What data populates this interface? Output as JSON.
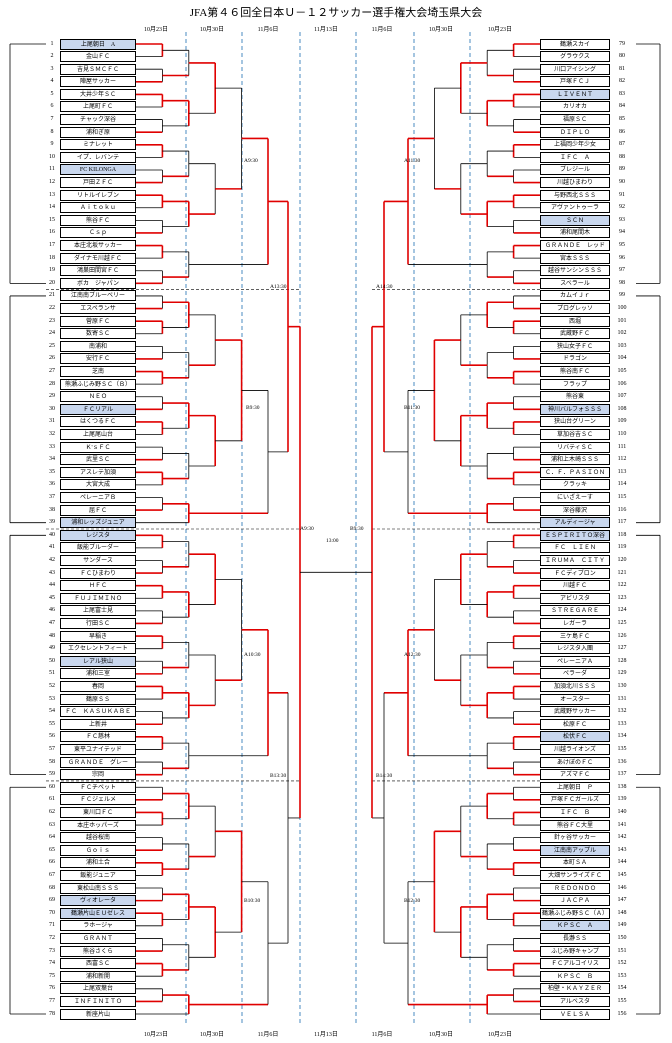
{
  "title": "JFA第４６回全日本Ｕ－１２サッカー選手権大会埼玉県大会",
  "dates_left": [
    "10月23日",
    "10月30日",
    "11月6日",
    "11月13日"
  ],
  "dates_right": [
    "11月6日",
    "10月30日",
    "10月23日"
  ],
  "colors": {
    "winner_line": "#e00000",
    "normal_line": "#000000",
    "date_divider": "#1f6fb2",
    "highlight": "#c9d7ee"
  },
  "left_teams": [
    {
      "num": "1",
      "name": "上尾朝日　A",
      "hl": true
    },
    {
      "num": "2",
      "name": "金山ＦＣ"
    },
    {
      "num": "3",
      "name": "吉見ＳＭＣＦＣ"
    },
    {
      "num": "4",
      "name": "陣屋サッカー"
    },
    {
      "num": "5",
      "name": "大井少年ＳＣ"
    },
    {
      "num": "6",
      "name": "上尾町ＦＣ"
    },
    {
      "num": "7",
      "name": "チャック深谷"
    },
    {
      "num": "8",
      "name": "浦和ぎ原"
    },
    {
      "num": "9",
      "name": "ミナレット"
    },
    {
      "num": "10",
      "name": "イプ．レバンテ"
    },
    {
      "num": "11",
      "name": "FC KILONGA",
      "hl": true
    },
    {
      "num": "12",
      "name": "戸田ＺＦＣ"
    },
    {
      "num": "13",
      "name": "リトルイレブン"
    },
    {
      "num": "14",
      "name": "Ａｉｔｏｋｕ"
    },
    {
      "num": "15",
      "name": "熊谷ＦＣ"
    },
    {
      "num": "16",
      "name": "Ｃｓｐ"
    },
    {
      "num": "17",
      "name": "本庄北坂サッカー"
    },
    {
      "num": "18",
      "name": "ダイナモ川越ＦＣ"
    },
    {
      "num": "19",
      "name": "鴻巣田間宮ＦＣ"
    },
    {
      "num": "20",
      "name": "ボカ　ジャパン"
    },
    {
      "num": "21",
      "name": "江南南ブルーベリー"
    },
    {
      "num": "22",
      "name": "エスペランサ"
    },
    {
      "num": "23",
      "name": "菅原ＦＣ"
    },
    {
      "num": "24",
      "name": "数寄ＳＣ"
    },
    {
      "num": "25",
      "name": "南浦和"
    },
    {
      "num": "26",
      "name": "安行ＦＣ"
    },
    {
      "num": "27",
      "name": "芝南"
    },
    {
      "num": "28",
      "name": "熊瀬ふじみ野ＳＣ（Ｂ）"
    },
    {
      "num": "29",
      "name": "ＮＥＯ"
    },
    {
      "num": "30",
      "name": "ＦＣリアル",
      "hl": true
    },
    {
      "num": "31",
      "name": "はくつるＦＣ"
    },
    {
      "num": "32",
      "name": "上尾尾山台"
    },
    {
      "num": "33",
      "name": "Ｋ'ｓＦＣ"
    },
    {
      "num": "34",
      "name": "武里ＳＣ"
    },
    {
      "num": "35",
      "name": "アスレテ加須"
    },
    {
      "num": "36",
      "name": "大宮大成"
    },
    {
      "num": "37",
      "name": "ペレーニアＢ"
    },
    {
      "num": "38",
      "name": "屈ＦＣ"
    },
    {
      "num": "39",
      "name": "浦和レッズジュニア",
      "hl": true
    },
    {
      "num": "40",
      "name": "レジスタ",
      "hl": true
    },
    {
      "num": "41",
      "name": "飯能ブルーダー"
    },
    {
      "num": "42",
      "name": "サンダース"
    },
    {
      "num": "43",
      "name": "ＦＣひまわり"
    },
    {
      "num": "44",
      "name": "ＨＦＣ"
    },
    {
      "num": "45",
      "name": "ＦＵＪＩＭＩＮＯ"
    },
    {
      "num": "46",
      "name": "上尾富士見"
    },
    {
      "num": "47",
      "name": "行田ＳＣ"
    },
    {
      "num": "48",
      "name": "早稲き"
    },
    {
      "num": "49",
      "name": "エクセレントフィート"
    },
    {
      "num": "50",
      "name": "レアル狭山",
      "hl": true
    },
    {
      "num": "51",
      "name": "浦和三室"
    },
    {
      "num": "52",
      "name": "春岡"
    },
    {
      "num": "53",
      "name": "鶴原ＳＳ"
    },
    {
      "num": "54",
      "name": "ＦＣ　ＫＡＳＵＫＡＢＥ"
    },
    {
      "num": "55",
      "name": "上新井"
    },
    {
      "num": "56",
      "name": "ＦＣ慈林"
    },
    {
      "num": "57",
      "name": "東平ユナイテッド"
    },
    {
      "num": "58",
      "name": "ＧＲＡＮＤＥ　グレー"
    },
    {
      "num": "59",
      "name": "宗岡"
    },
    {
      "num": "60",
      "name": "ＦＣチベット"
    },
    {
      "num": "61",
      "name": "ＦＣジェルメ"
    },
    {
      "num": "62",
      "name": "東川口ＦＣ"
    },
    {
      "num": "63",
      "name": "本庄ホッパーズ"
    },
    {
      "num": "64",
      "name": "越谷桜南"
    },
    {
      "num": "65",
      "name": "Ｇｏｉｓ"
    },
    {
      "num": "66",
      "name": "浦和土合"
    },
    {
      "num": "67",
      "name": "飯能ジュニア"
    },
    {
      "num": "68",
      "name": "東松山南ＳＳＳ"
    },
    {
      "num": "69",
      "name": "ヴィオレータ",
      "hl": true
    },
    {
      "num": "70",
      "name": "鶴瀬片山ＥＵゼレス",
      "hl": true
    },
    {
      "num": "71",
      "name": "ラホージャ"
    },
    {
      "num": "72",
      "name": "ＧＲＡＮＴ"
    },
    {
      "num": "73",
      "name": "熊谷さくら"
    },
    {
      "num": "74",
      "name": "西富ＳＣ"
    },
    {
      "num": "75",
      "name": "浦和新開"
    },
    {
      "num": "76",
      "name": "上尾双葉台"
    },
    {
      "num": "77",
      "name": "ＩＮＦＩＮＩＴＯ"
    },
    {
      "num": "78",
      "name": "新座片山"
    }
  ],
  "right_teams": [
    {
      "num": "79",
      "name": "鶴瀬スカイ"
    },
    {
      "num": "80",
      "name": "グラウクス"
    },
    {
      "num": "81",
      "name": "川口アイシング"
    },
    {
      "num": "82",
      "name": "戸塚ＦＣＪ"
    },
    {
      "num": "83",
      "name": "ＬＩＶＥＮＴ",
      "hl": true
    },
    {
      "num": "84",
      "name": "カリオカ"
    },
    {
      "num": "85",
      "name": "福原ＳＣ"
    },
    {
      "num": "86",
      "name": "ＤＩＰＬＯ"
    },
    {
      "num": "87",
      "name": "上福岡少年少女"
    },
    {
      "num": "88",
      "name": "ＩＦＣ　Ａ"
    },
    {
      "num": "89",
      "name": "ブレジール"
    },
    {
      "num": "90",
      "name": "川越ひまわり"
    },
    {
      "num": "91",
      "name": "与野西北ＳＳＳ"
    },
    {
      "num": "92",
      "name": "アヴァントゥーラ"
    },
    {
      "num": "93",
      "name": "ＳＣＮ",
      "hl": true
    },
    {
      "num": "94",
      "name": "浦和尾間木"
    },
    {
      "num": "95",
      "name": "ＧＲＡＮＤＥ　レッド"
    },
    {
      "num": "96",
      "name": "宮本ＳＳＳ"
    },
    {
      "num": "97",
      "name": "越谷サンシンＳＳＳ"
    },
    {
      "num": "98",
      "name": "スベラール"
    },
    {
      "num": "99",
      "name": "カムイＪｒ"
    },
    {
      "num": "100",
      "name": "プログレッソ"
    },
    {
      "num": "101",
      "name": "西堀"
    },
    {
      "num": "102",
      "name": "武蔵野ＦＣ"
    },
    {
      "num": "103",
      "name": "狭山女子ＦＣ"
    },
    {
      "num": "104",
      "name": "ドラゴン"
    },
    {
      "num": "105",
      "name": "熊谷南ＦＣ"
    },
    {
      "num": "106",
      "name": "フラップ"
    },
    {
      "num": "107",
      "name": "熊谷東"
    },
    {
      "num": "108",
      "name": "神川バルフォＳＳＳ",
      "hl": true
    },
    {
      "num": "109",
      "name": "狭山台グリーン"
    },
    {
      "num": "110",
      "name": "草加谷吉ＳＣ"
    },
    {
      "num": "111",
      "name": "リバティＳＣ"
    },
    {
      "num": "112",
      "name": "浦和上木崎ＳＳＳ"
    },
    {
      "num": "113",
      "name": "Ｃ．Ｆ．ＰＡＳＩＯＮ"
    },
    {
      "num": "114",
      "name": "クラッキ"
    },
    {
      "num": "115",
      "name": "にいざえーす"
    },
    {
      "num": "116",
      "name": "深谷藤沢"
    },
    {
      "num": "117",
      "name": "アルディージャ",
      "hl": true
    },
    {
      "num": "118",
      "name": "ＥＳＰＩＲＩＴＯ深谷",
      "hl": true
    },
    {
      "num": "119",
      "name": "ＦＣ　ＬＩＥＮ"
    },
    {
      "num": "120",
      "name": "ＩＲＵＭＡ　ＣＩＴＹ"
    },
    {
      "num": "121",
      "name": "ＦＣディブロン"
    },
    {
      "num": "122",
      "name": "川越ＦＣ"
    },
    {
      "num": "123",
      "name": "アビリスタ"
    },
    {
      "num": "124",
      "name": "ＳＴＲＥＧＡＲＥ"
    },
    {
      "num": "125",
      "name": "レガーラ"
    },
    {
      "num": "126",
      "name": "三ケ島ＦＣ"
    },
    {
      "num": "127",
      "name": "レジスタ入團"
    },
    {
      "num": "128",
      "name": "ペレーニアＡ"
    },
    {
      "num": "129",
      "name": "ペラーダ"
    },
    {
      "num": "130",
      "name": "加須北川ＳＳＳ"
    },
    {
      "num": "131",
      "name": "オースター"
    },
    {
      "num": "132",
      "name": "武蔵野サッカー"
    },
    {
      "num": "133",
      "name": "松原ＦＣ"
    },
    {
      "num": "134",
      "name": "松伏ＦＣ",
      "hl": true
    },
    {
      "num": "135",
      "name": "川越ライオンズ"
    },
    {
      "num": "136",
      "name": "あけぼのＦＣ"
    },
    {
      "num": "137",
      "name": "アズマＦＣ"
    },
    {
      "num": "138",
      "name": "上尾朝日　Ｐ"
    },
    {
      "num": "139",
      "name": "戸塚ＦＣガールズ"
    },
    {
      "num": "140",
      "name": "ＩＦＣ　Ｂ"
    },
    {
      "num": "141",
      "name": "熊谷ＦＣ大里"
    },
    {
      "num": "142",
      "name": "針ヶ谷サッカー"
    },
    {
      "num": "143",
      "name": "江南南アップル",
      "hl": true
    },
    {
      "num": "144",
      "name": "本町ＳＡ"
    },
    {
      "num": "145",
      "name": "大畑サンライズＦＣ"
    },
    {
      "num": "146",
      "name": "ＲＥＤＯＮＤＯ"
    },
    {
      "num": "147",
      "name": "ＪＡＣＰＡ"
    },
    {
      "num": "148",
      "name": "鶴瀬ふじみ野ＳＣ（Ａ）"
    },
    {
      "num": "149",
      "name": "ＫＰＳＣ　Ａ",
      "hl": true
    },
    {
      "num": "150",
      "name": "長瀞ＳＳ"
    },
    {
      "num": "151",
      "name": "ふじみ野キャンプ"
    },
    {
      "num": "152",
      "name": "ＦＣアルコイリス"
    },
    {
      "num": "153",
      "name": "ＫＰＳＣ　Ｂ"
    },
    {
      "num": "154",
      "name": "柏壁・ＫＡＹＺＥＲ"
    },
    {
      "num": "155",
      "name": "アルベスタ"
    },
    {
      "num": "156",
      "name": "ＶＥＬＳＡ"
    }
  ],
  "match_labels_left": [
    "A9:30",
    "A13:30",
    "B9:30",
    "A10:30",
    "B13:30",
    "B10:30",
    "A9:30"
  ],
  "match_labels_right": [
    "A11:30",
    "A14:30",
    "B11:30",
    "A12:30",
    "B14:30",
    "B12:30",
    "B9:30"
  ],
  "final_time": "13:00"
}
